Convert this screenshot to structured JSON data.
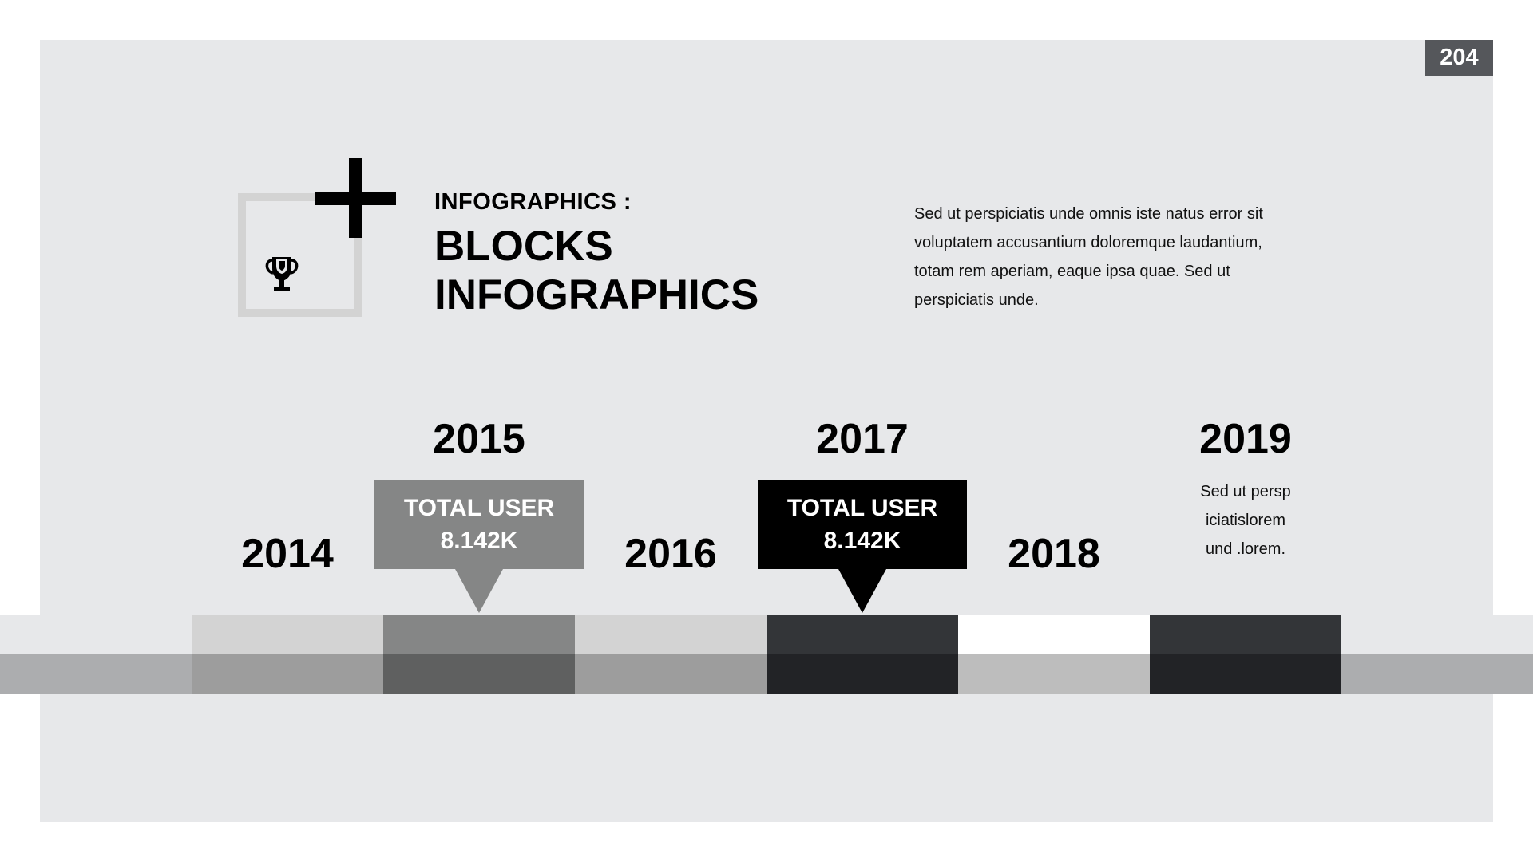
{
  "page_number": "204",
  "header": {
    "kicker": "INFOGRAPHICS :",
    "title_line1": "BLOCKS",
    "title_line2": "INFOGRAPHICS",
    "description": "Sed ut perspiciatis unde omnis iste natus error sit voluptatem accusantium doloremque laudantium, totam rem aperiam, eaque ipsa quae. Sed ut perspiciatis unde."
  },
  "icons": {
    "main": "trophy-icon",
    "accent": "plus-icon"
  },
  "timeline": {
    "years": [
      "2014",
      "2015",
      "2016",
      "2017",
      "2018",
      "2019"
    ],
    "callouts": [
      {
        "year": "2015",
        "line1": "TOTAL USER",
        "line2": "8.142K",
        "color": "#858686"
      },
      {
        "year": "2017",
        "line1": "TOTAL USER",
        "line2": "8.142K",
        "color": "#000000"
      }
    ],
    "note_2019": {
      "line1": "Sed ut persp",
      "line2": "iciatislorem",
      "line3": "und .lorem."
    }
  },
  "colors": {
    "panel": "#e7e8ea",
    "band_light": "#e7e8ea",
    "band_dark": "#acadaf",
    "segments": [
      {
        "top": "#d3d3d3",
        "bottom": "#9d9d9d"
      },
      {
        "top": "#858686",
        "bottom": "#5f6060"
      },
      {
        "top": "#d3d3d3",
        "bottom": "#9d9d9d"
      },
      {
        "top": "#333538",
        "bottom": "#222326"
      },
      {
        "top": "#ffffff",
        "bottom": "#bdbdbd"
      },
      {
        "top": "#333538",
        "bottom": "#222326"
      }
    ]
  }
}
